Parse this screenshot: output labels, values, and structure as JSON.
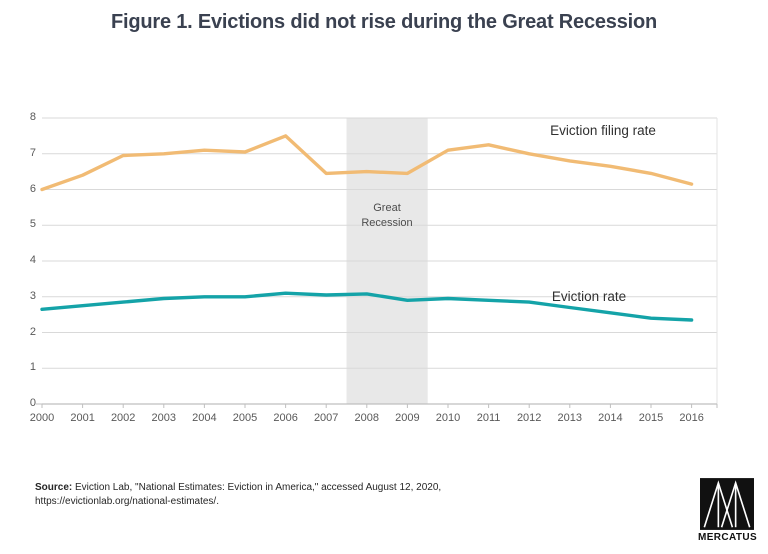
{
  "page": {
    "title": "Figure 1. Evictions did not rise during the Great Recession"
  },
  "chart_data": {
    "type": "line",
    "x": [
      2000,
      2001,
      2002,
      2003,
      2004,
      2005,
      2006,
      2007,
      2008,
      2009,
      2010,
      2011,
      2012,
      2013,
      2014,
      2015,
      2016
    ],
    "series": [
      {
        "name": "Eviction filing rate",
        "color": "#f1bb74",
        "values": [
          6.0,
          6.4,
          6.95,
          7.0,
          7.1,
          7.05,
          7.5,
          6.45,
          6.5,
          6.45,
          7.1,
          7.25,
          7.0,
          6.8,
          6.65,
          6.45,
          6.15
        ]
      },
      {
        "name": "Eviction rate",
        "color": "#14a3a8",
        "values": [
          2.65,
          2.75,
          2.85,
          2.95,
          3.0,
          3.0,
          3.1,
          3.05,
          3.08,
          2.9,
          2.95,
          2.9,
          2.85,
          2.7,
          2.55,
          2.4,
          2.35
        ]
      }
    ],
    "title": "Figure 1. Evictions did not rise during the Great Recession",
    "xlabel": "",
    "ylabel": "",
    "ylim": [
      0,
      8
    ],
    "yticks": [
      0,
      1,
      2,
      3,
      4,
      5,
      6,
      7,
      8
    ],
    "grid": true,
    "legend_position": "inline-labels",
    "recession_band": {
      "label": "Great Recession",
      "from": 2007.5,
      "to": 2009.5,
      "color": "#e8e8e8"
    },
    "colors": {
      "gridline": "#d9d9d9",
      "axis": "#bfbfbf",
      "tick_text": "#595959",
      "title_text": "#3a4150"
    }
  },
  "source": {
    "label": "Source:",
    "text": " Eviction Lab, \"National Estimates: Eviction in America,\" accessed August 12, 2020, https://evictionlab.org/national-estimates/."
  },
  "logo": {
    "text": "MERCATUS"
  }
}
